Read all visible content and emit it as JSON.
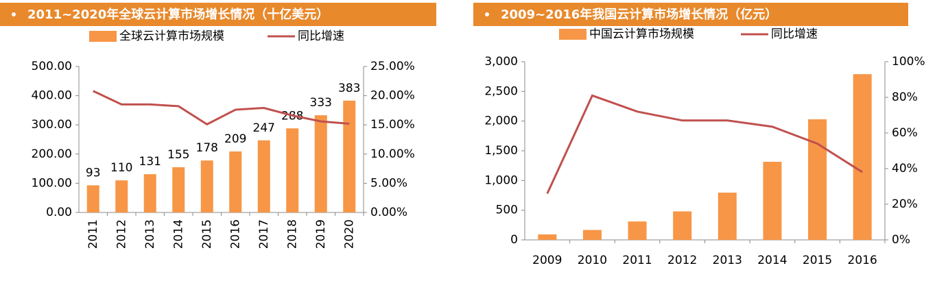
{
  "chart_data": [
    {
      "type": "bar",
      "title": "2011~2020年全球云计算市场增长情况（十亿美元）",
      "categories": [
        "2011",
        "2012",
        "2013",
        "2014",
        "2015",
        "2016",
        "2017",
        "2018",
        "2019",
        "2020"
      ],
      "series": [
        {
          "name": "全球云计算市场规模",
          "type": "bar",
          "color": "#f79646",
          "values": [
            93,
            110,
            131,
            155,
            178,
            209,
            247,
            288,
            333,
            383
          ]
        },
        {
          "name": "同比增速",
          "type": "line",
          "axis": "y2",
          "color": "#c0504d",
          "values": [
            20.8,
            18.5,
            18.5,
            18.2,
            15.1,
            17.6,
            17.9,
            16.6,
            15.6,
            15.2
          ]
        }
      ],
      "ylim": [
        0,
        500
      ],
      "yticks": [
        {
          "value": 0,
          "label": "0.00"
        },
        {
          "value": 100,
          "label": "100.00"
        },
        {
          "value": 200,
          "label": "200.00"
        },
        {
          "value": 300,
          "label": "300.00"
        },
        {
          "value": 400,
          "label": "400.00"
        },
        {
          "value": 500,
          "label": "500.00"
        }
      ],
      "y2lim": [
        0,
        25
      ],
      "y2ticks": [
        {
          "value": 0,
          "label": "0.00%"
        },
        {
          "value": 5,
          "label": "5.00%"
        },
        {
          "value": 10,
          "label": "10.00%"
        },
        {
          "value": 15,
          "label": "15.00%"
        },
        {
          "value": 20,
          "label": "20.00%"
        },
        {
          "value": 25,
          "label": "25.00%"
        }
      ],
      "data_labels": true
    },
    {
      "type": "bar",
      "title": "2009~2016年我国云计算市场增长情况（亿元）",
      "categories": [
        "2009",
        "2010",
        "2011",
        "2012",
        "2013",
        "2014",
        "2015",
        "2016"
      ],
      "series": [
        {
          "name": "中国云计算市场规模",
          "type": "bar",
          "color": "#f79646",
          "values": [
            92,
            167,
            310,
            480,
            795,
            1315,
            2030,
            2790
          ]
        },
        {
          "name": "同比增速",
          "type": "line",
          "axis": "y2",
          "color": "#c0504d",
          "values": [
            26,
            81,
            72,
            67,
            67,
            63.5,
            54,
            38
          ]
        }
      ],
      "ylim": [
        0,
        3000
      ],
      "yticks": [
        0,
        500,
        {
          "value": 1000,
          "label": "1,000"
        },
        {
          "value": 1500,
          "label": "1,500"
        },
        {
          "value": 2000,
          "label": "2,000"
        },
        {
          "value": 2500,
          "label": "2,500"
        },
        {
          "value": 3000,
          "label": "3,000"
        }
      ],
      "y2lim": [
        0,
        100
      ],
      "y2ticks": [
        {
          "value": 0,
          "label": "0%"
        },
        {
          "value": 20,
          "label": "20%"
        },
        {
          "value": 40,
          "label": "40%"
        },
        {
          "value": 60,
          "label": "60%"
        },
        {
          "value": 80,
          "label": "80%"
        },
        {
          "value": 100,
          "label": "100%"
        }
      ],
      "data_labels": false
    }
  ]
}
